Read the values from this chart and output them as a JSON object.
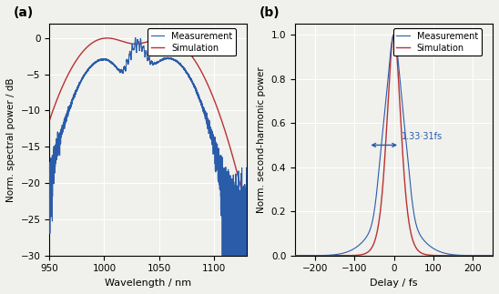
{
  "fig_width": 5.48,
  "fig_height": 3.23,
  "dpi": 100,
  "panel_a": {
    "label": "(a)",
    "xlabel": "Wavelength / nm",
    "ylabel": "Norm. spectral power / dB",
    "xlim": [
      950,
      1130
    ],
    "ylim": [
      -30,
      2
    ],
    "yticks": [
      0,
      -5,
      -10,
      -15,
      -20,
      -25,
      -30
    ],
    "xticks": [
      950,
      1000,
      1050,
      1100
    ],
    "meas_color": "#2a5caa",
    "sim_color": "#b83232",
    "legend_labels": [
      "Measurement",
      "Simulation"
    ]
  },
  "panel_b": {
    "label": "(b)",
    "xlabel": "Delay / fs",
    "ylabel": "Norm. second-harmonic power",
    "xlim": [
      -250,
      250
    ],
    "ylim": [
      0,
      1.05
    ],
    "yticks": [
      0,
      0.2,
      0.4,
      0.6,
      0.8,
      1.0
    ],
    "xticks": [
      -200,
      -100,
      0,
      100,
      200
    ],
    "meas_color": "#2a5caa",
    "sim_color": "#b83232",
    "annotation_text": "1.33·31fs",
    "annotation_color": "#2a5caa",
    "legend_labels": [
      "Measurement",
      "Simulation"
    ]
  },
  "background_color": "#f0f0ec",
  "grid_color": "#ffffff",
  "grid_lw": 0.8
}
